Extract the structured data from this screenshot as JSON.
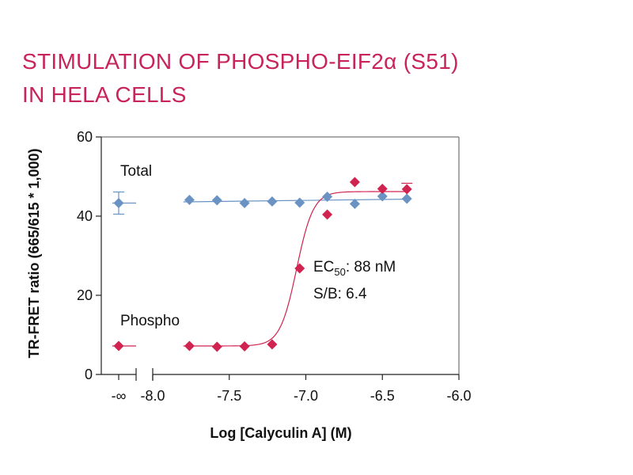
{
  "title_line1": "STIMULATION OF PHOSPHO-EIF2α (S51)",
  "title_line2": "IN HELA CELLS",
  "chart_data": {
    "type": "scatter",
    "xlabel": "Log [Calyculin A] (M)",
    "ylabel": "TR-FRET ratio (665/615 * 1,000)",
    "xlim": [
      -8.0,
      -6.0
    ],
    "ylim": [
      0,
      60
    ],
    "x_ticks": [
      "-8.0",
      "-7.5",
      "-7.0",
      "-6.5",
      "-6.0"
    ],
    "y_ticks": [
      "0",
      "20",
      "40",
      "60"
    ],
    "x_zero_label": "-∞",
    "axis_break": true,
    "grid": false,
    "series": [
      {
        "name": "Total",
        "color": "#6a93c4",
        "zero_point": {
          "y": 43.3,
          "err": 2.8
        },
        "x": [
          -7.76,
          -7.58,
          -7.4,
          -7.22,
          -7.04,
          -6.86,
          -6.68,
          -6.5,
          -6.34
        ],
        "y": [
          44.1,
          44.0,
          43.3,
          43.7,
          43.4,
          44.9,
          43.1,
          45.0,
          44.4
        ],
        "fit": {
          "type": "flat",
          "y0": 43.6,
          "y1": 44.3
        }
      },
      {
        "name": "Phospho",
        "color": "#d02350",
        "zero_point": {
          "y": 7.2,
          "err": 0
        },
        "x": [
          -7.76,
          -7.58,
          -7.4,
          -7.22,
          -7.04,
          -6.86,
          -6.68,
          -6.5,
          -6.34
        ],
        "y": [
          7.2,
          7.0,
          7.1,
          7.6,
          26.8,
          40.4,
          48.6,
          46.9,
          46.8
        ],
        "fit": {
          "type": "sigmoid",
          "bottom": 7.2,
          "top": 46.2,
          "logEC50": -7.06,
          "hill": 8
        }
      }
    ],
    "annotations": {
      "ec50_prefix": "EC",
      "ec50_sub": "50",
      "ec50_value": ": 88 nM",
      "sb": "S/B: 6.4"
    }
  }
}
